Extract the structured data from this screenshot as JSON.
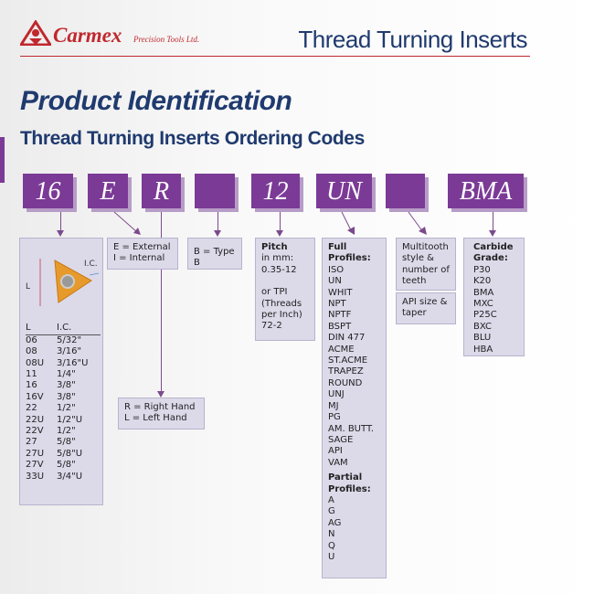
{
  "header": {
    "brand": "Carmex",
    "brand_sub": "Precision Tools Ltd.",
    "title": "Thread Turning Inserts"
  },
  "page_title": "Product Identification",
  "subtitle": "Thread Turning Inserts Ordering Codes",
  "colors": {
    "accent": "#7b3a96",
    "navy": "#1f3a6e",
    "brand_red": "#c0282d",
    "box_bg": "#dcd9e9"
  },
  "codes": [
    "16",
    "E",
    "R",
    "",
    "12",
    "UN",
    "",
    "BMA"
  ],
  "size": {
    "diagram_L": "L",
    "diagram_IC": "I.C.",
    "col_L": "L",
    "col_IC": "I.C.",
    "rows": [
      [
        "06",
        "5/32\""
      ],
      [
        "08",
        "3/16\""
      ],
      [
        "08U",
        "3/16\"U"
      ],
      [
        "11",
        "1/4\""
      ],
      [
        "16",
        "3/8\""
      ],
      [
        "16V",
        "3/8\""
      ],
      [
        "22",
        "1/2\""
      ],
      [
        "22U",
        "1/2\"U"
      ],
      [
        "22V",
        "1/2\""
      ],
      [
        "27",
        "5/8\""
      ],
      [
        "27U",
        "5/8\"U"
      ],
      [
        "27V",
        "5/8\""
      ],
      [
        "33U",
        "3/4\"U"
      ]
    ]
  },
  "type": {
    "line1": "E = External",
    "line2": "I = Internal"
  },
  "hand": {
    "line1": "R = Right Hand",
    "line2": "L = Left Hand"
  },
  "typeb": {
    "text": "B = Type B"
  },
  "pitch": {
    "heading": "Pitch",
    "line1": "in mm:",
    "line2": "0.35-12",
    "line3": "or TPI",
    "line4": "(Threads",
    "line5": "per Inch)",
    "line6": "72-2"
  },
  "profiles": {
    "full_heading": "Full Profiles:",
    "full": [
      "ISO",
      "UN",
      "WHIT",
      "NPT",
      "NPTF",
      "BSPT",
      "DIN 477",
      "ACME",
      "ST.ACME",
      "TRAPEZ",
      "ROUND",
      "UNJ",
      "MJ",
      "PG",
      "AM. BUTT.",
      "SAGE",
      "API",
      "VAM"
    ],
    "partial_heading": "Partial Profiles:",
    "partial": [
      "A",
      "G",
      "AG",
      "N",
      "Q",
      "U"
    ]
  },
  "multitooth": {
    "text": "Multitooth style & number of teeth",
    "api": "API size & taper"
  },
  "grade": {
    "heading": "Carbide Grade:",
    "items": [
      "P30",
      "K20",
      "BMA",
      "MXC",
      "P25C",
      "BXC",
      "BLU",
      "HBA"
    ]
  }
}
